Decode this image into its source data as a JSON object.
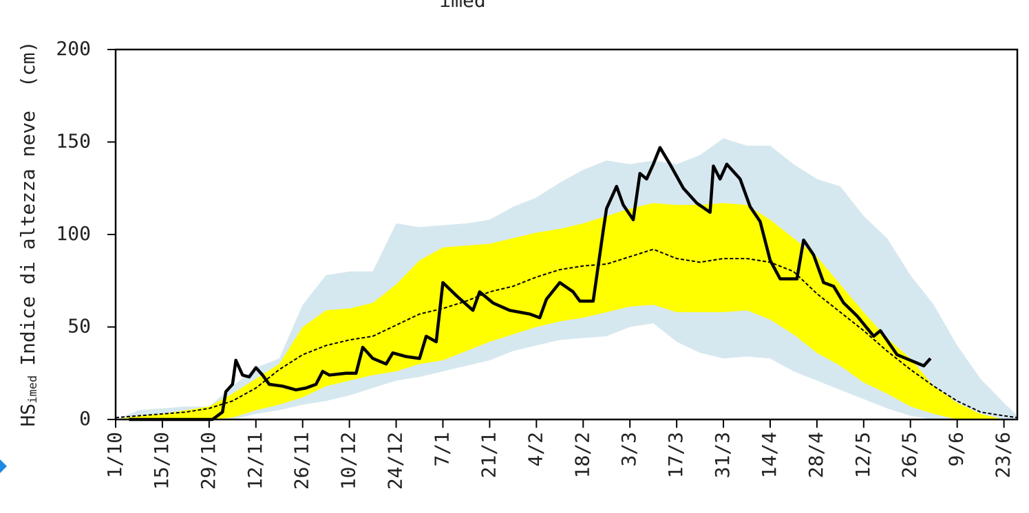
{
  "chart_data": {
    "type": "line",
    "title": "imed",
    "ylabel_symbol": "HS",
    "ylabel_subscript": "imed",
    "ylabel": "Indice di altezza neve",
    "ylabel_unit": "(cm)",
    "xlim": [
      0,
      270
    ],
    "ylim": [
      0,
      200
    ],
    "yticks": [
      0,
      50,
      100,
      150,
      200
    ],
    "xticks": [
      {
        "value": 0,
        "label": "1/10"
      },
      {
        "value": 14,
        "label": "15/10"
      },
      {
        "value": 28,
        "label": "29/10"
      },
      {
        "value": 42,
        "label": "12/11"
      },
      {
        "value": 56,
        "label": "26/11"
      },
      {
        "value": 70,
        "label": "10/12"
      },
      {
        "value": 84,
        "label": "24/12"
      },
      {
        "value": 98,
        "label": "7/1"
      },
      {
        "value": 112,
        "label": "21/1"
      },
      {
        "value": 126,
        "label": "4/2"
      },
      {
        "value": 140,
        "label": "18/2"
      },
      {
        "value": 154,
        "label": "3/3"
      },
      {
        "value": 168,
        "label": "17/3"
      },
      {
        "value": 182,
        "label": "31/3"
      },
      {
        "value": 196,
        "label": "14/4"
      },
      {
        "value": 210,
        "label": "28/4"
      },
      {
        "value": 224,
        "label": "12/5"
      },
      {
        "value": 238,
        "label": "26/5"
      },
      {
        "value": 252,
        "label": "9/6"
      },
      {
        "value": 266,
        "label": "23/6"
      }
    ],
    "areas": [
      {
        "color": "#d6e8ef",
        "x": [
          0,
          7,
          14,
          21,
          28,
          35,
          42,
          49,
          56,
          63,
          70,
          77,
          84,
          91,
          98,
          105,
          112,
          119,
          126,
          133,
          140,
          147,
          154,
          161,
          168,
          175,
          182,
          189,
          196,
          203,
          210,
          217,
          224,
          231,
          238,
          245,
          252,
          259,
          266,
          270
        ],
        "upper": [
          0,
          5,
          6,
          7,
          7,
          18,
          28,
          33,
          62,
          78,
          80,
          80,
          106,
          104,
          105,
          106,
          108,
          115,
          120,
          128,
          135,
          140,
          138,
          140,
          138,
          143,
          152,
          148,
          148,
          138,
          130,
          126,
          110,
          98,
          78,
          62,
          40,
          22,
          9,
          2
        ],
        "lower": [
          0,
          0,
          0,
          0,
          0,
          0,
          3,
          5,
          8,
          10,
          13,
          17,
          21,
          23,
          26,
          29,
          32,
          37,
          40,
          43,
          44,
          45,
          50,
          52,
          42,
          36,
          33,
          34,
          33,
          26,
          21,
          16,
          11,
          6,
          2,
          0,
          0,
          0,
          0,
          0
        ]
      },
      {
        "color": "#ffff00",
        "x": [
          0,
          7,
          14,
          21,
          28,
          35,
          42,
          49,
          56,
          63,
          70,
          77,
          84,
          91,
          98,
          105,
          112,
          119,
          126,
          133,
          140,
          147,
          154,
          161,
          168,
          175,
          182,
          189,
          196,
          203,
          210,
          217,
          224,
          231,
          238,
          245,
          252,
          259,
          266,
          270
        ],
        "upper": [
          0,
          2,
          3,
          5,
          7,
          14,
          22,
          30,
          50,
          59,
          60,
          63,
          73,
          86,
          93,
          94,
          95,
          98,
          101,
          103,
          106,
          110,
          114,
          117,
          116,
          116,
          117,
          116,
          108,
          98,
          88,
          73,
          58,
          44,
          33,
          18,
          9,
          3,
          0,
          0
        ],
        "lower": [
          0,
          0,
          0,
          0,
          0,
          1,
          5,
          8,
          12,
          18,
          21,
          24,
          26,
          30,
          32,
          37,
          42,
          46,
          50,
          53,
          55,
          58,
          61,
          62,
          58,
          58,
          58,
          59,
          54,
          46,
          36,
          29,
          20,
          14,
          7,
          3,
          0,
          0,
          0,
          0
        ]
      }
    ],
    "series": [
      {
        "color": "#000000",
        "dashed": true,
        "x": [
          0,
          7,
          14,
          21,
          28,
          35,
          42,
          49,
          56,
          63,
          70,
          77,
          84,
          91,
          98,
          105,
          112,
          119,
          126,
          133,
          140,
          147,
          154,
          161,
          168,
          175,
          182,
          189,
          196,
          203,
          210,
          217,
          224,
          231,
          238,
          245,
          252,
          259,
          266,
          270
        ],
        "values": [
          1,
          2,
          3,
          4,
          6,
          10,
          17,
          27,
          35,
          40,
          43,
          45,
          51,
          57,
          60,
          64,
          69,
          72,
          77,
          81,
          83,
          84,
          88,
          92,
          87,
          85,
          87,
          87,
          85,
          80,
          68,
          58,
          48,
          37,
          27,
          18,
          10,
          4,
          2,
          1
        ]
      },
      {
        "color": "#000000",
        "dashed": false,
        "x": [
          4,
          29,
          32,
          33,
          35,
          36,
          38,
          40,
          42,
          44,
          46,
          50,
          54,
          57,
          60,
          62,
          64,
          69,
          72,
          74,
          77,
          81,
          83,
          87,
          91,
          93,
          96,
          98,
          102,
          107,
          109,
          113,
          118,
          124,
          127,
          129,
          133,
          137,
          139,
          143,
          146,
          147,
          150,
          152,
          155,
          157,
          159,
          161,
          163,
          166,
          170,
          174,
          178,
          179,
          181,
          183,
          187,
          190,
          193,
          196,
          199,
          204,
          206,
          209,
          212,
          215,
          218,
          222,
          227,
          229,
          234,
          238,
          242,
          244
        ],
        "values": [
          0,
          0,
          4,
          15,
          19,
          32,
          24,
          23,
          28,
          24,
          19,
          18,
          16,
          17,
          19,
          26,
          24,
          25,
          25,
          39,
          33,
          30,
          36,
          34,
          33,
          45,
          42,
          74,
          67,
          59,
          69,
          63,
          59,
          57,
          55,
          65,
          74,
          69,
          64,
          64,
          102,
          114,
          126,
          116,
          108,
          133,
          130,
          138,
          147,
          138,
          125,
          117,
          112,
          137,
          130,
          138,
          130,
          115,
          107,
          86,
          76,
          76,
          97,
          89,
          74,
          72,
          63,
          56,
          45,
          48,
          35,
          32,
          29,
          33
        ]
      }
    ]
  }
}
